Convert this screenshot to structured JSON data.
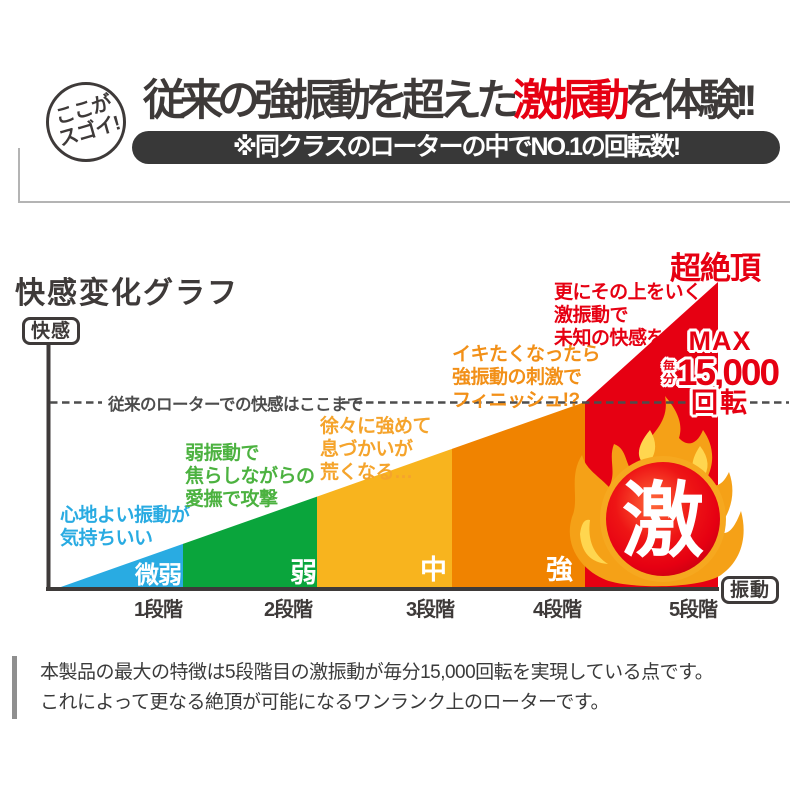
{
  "header": {
    "badge_circle": {
      "line1": "ここが",
      "line2": "スゴイ!"
    },
    "headline": {
      "pre": "従来の強振動を超えた",
      "highlight": "激振動",
      "post": "を体験!!"
    },
    "subbanner": "※同クラスのローターの中でNO.1の回転数!"
  },
  "chart_data": {
    "type": "area",
    "title": "快感変化グラフ",
    "y_axis_label": "快感",
    "x_axis_label": "振動",
    "threshold_label": "従来のローターでの快感はここまで",
    "legend_position": "none",
    "grid": false,
    "stages": [
      {
        "level": 1,
        "tick": "1段階",
        "label": "微弱",
        "color": "#29abe2",
        "annotation": "心地よい振動が\n気持ちいい",
        "annotation_color": "#29abe2",
        "relative_height": 0.35
      },
      {
        "level": 2,
        "tick": "2段階",
        "label": "弱",
        "color": "#0aa53c",
        "annotation": "弱振動で\n焦らしながらの\n愛撫で攻撃",
        "annotation_color": "#4cb240",
        "relative_height": 0.44
      },
      {
        "level": 3,
        "tick": "3段階",
        "label": "中",
        "color": "#f8b41e",
        "annotation": "徐々に強めて\n息づかいが\n荒くなる…",
        "annotation_color": "#f5a42c",
        "relative_height": 0.6
      },
      {
        "level": 4,
        "tick": "4段階",
        "label": "強",
        "color": "#f08300",
        "annotation": "イキたくなったら\n強振動の刺激で\nフィニッシュ!?",
        "annotation_color": "#f29018",
        "relative_height": 0.79
      },
      {
        "level": 5,
        "tick": "5段階",
        "label": "",
        "color": "#e60012",
        "annotation": "更にその上をいく\n激振動で\n未知の快感を",
        "annotation_color": "#e60012",
        "relative_height": 1.0
      }
    ],
    "peak_label": "超絶頂",
    "peak_symbol": "激",
    "max_badge": {
      "line1": "MAX",
      "unit": "毎分",
      "value": "15,000",
      "line3": "回転"
    },
    "max_rpm": 15000
  },
  "footer": {
    "text": "本製品の最大の特徴は5段階目の激振動が毎分15,000回転を実現している点です。\nこれによって更なる絶頂が可能になるワンランク上のローターです。"
  },
  "colors": {
    "brand_red": "#e60012",
    "dark": "#3e3a39",
    "banner_bg": "#383838",
    "dash": "#4d4d4d",
    "flame_orange": "#f5a117",
    "flame_yellow": "#ffd64f",
    "ring_orange": "#f6a81f"
  }
}
